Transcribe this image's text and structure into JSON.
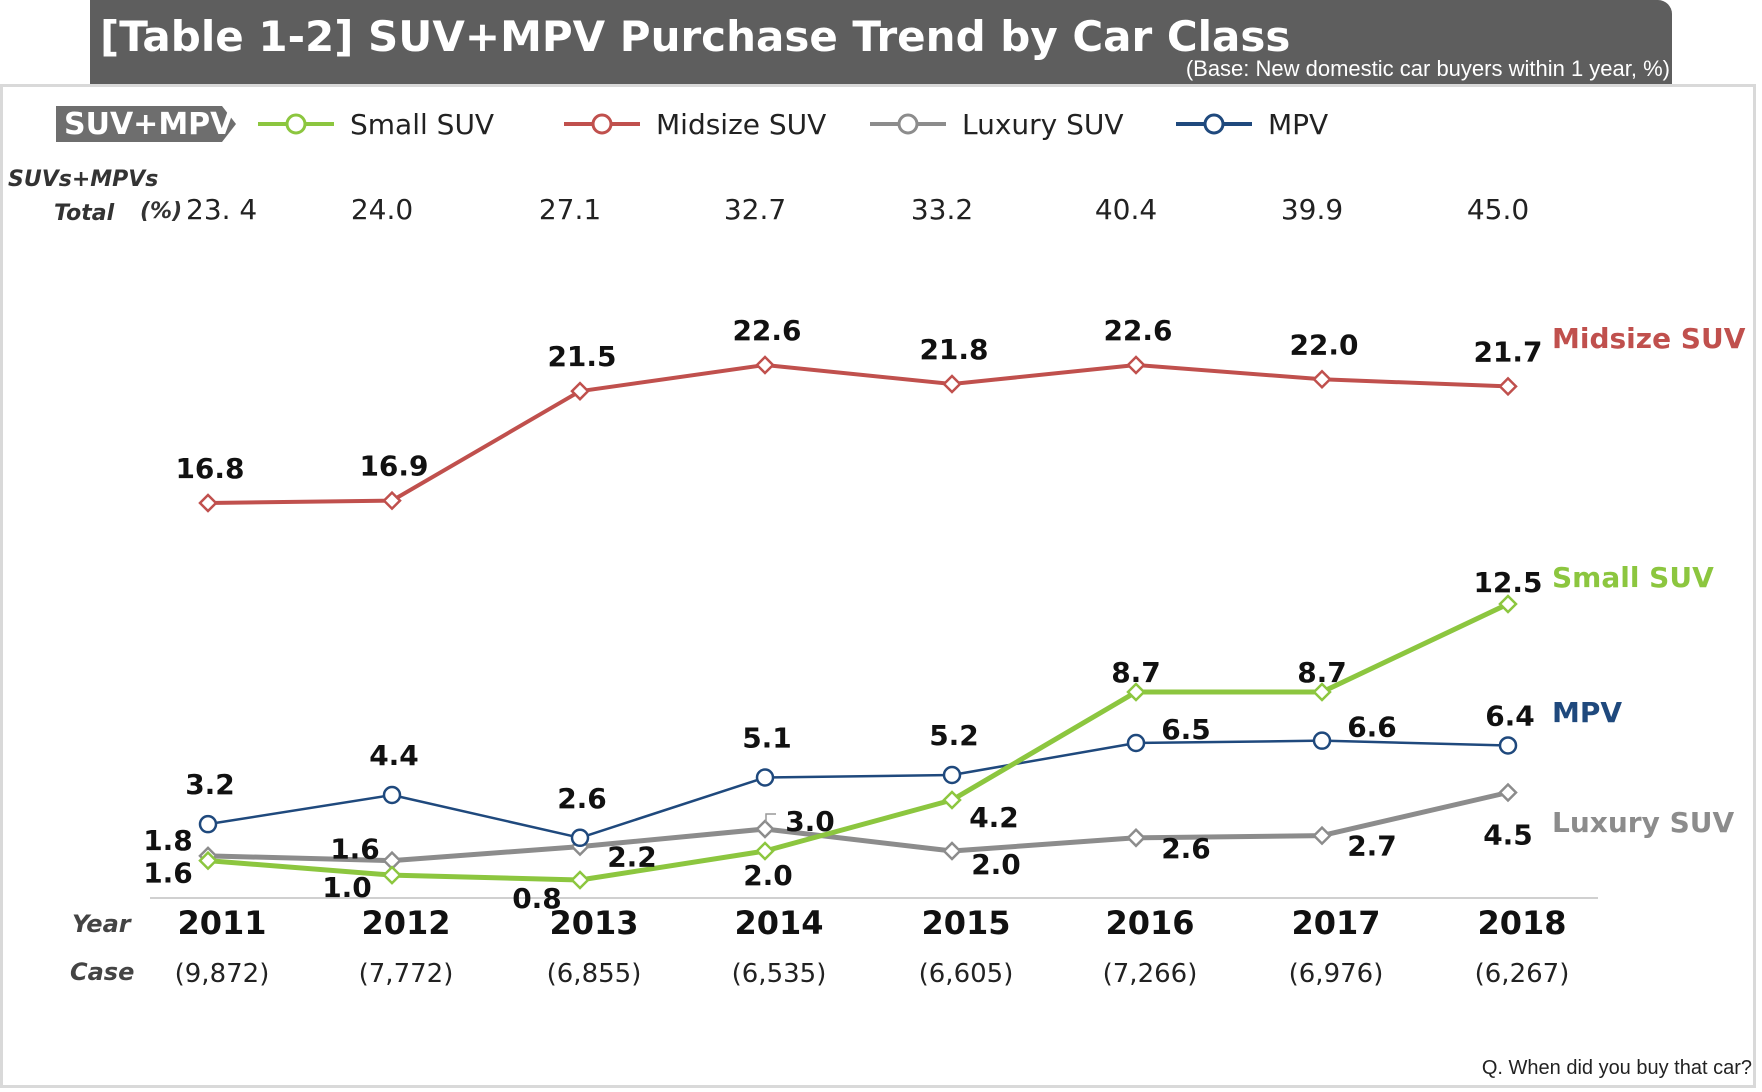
{
  "header": {
    "title": "[Table 1-2] SUV+MPV Purchase Trend by Car Class",
    "base": "(Base: New domestic car buyers within 1 year, %)"
  },
  "footer": {
    "question": "Q. When did you buy that car?"
  },
  "legend": {
    "tag": "SUV+MPV",
    "items": [
      "Small SUV",
      "Midsize SUV",
      "Luxury SUV",
      "MPV"
    ]
  },
  "totals_row": {
    "label_line1": "SUVs+MPVs",
    "label_line2": "Total",
    "unit": "(%)",
    "values": [
      "23. 4",
      "24.0",
      "27.1",
      "32.7",
      "33.2",
      "40.4",
      "39.9",
      "45.0"
    ]
  },
  "year_label": "Year",
  "case_label": "Case",
  "cases": [
    "(9,872)",
    "(7,772)",
    "(6,855)",
    "(6,535)",
    "(6,605)",
    "(7,266)",
    "(6,976)",
    "(6,267)"
  ],
  "colors": {
    "small": "#8cc63f",
    "midsize": "#c0504d",
    "luxury": "#8c8c8c",
    "mpv": "#1f497d"
  },
  "chart_data": {
    "type": "line",
    "x": [
      "2011",
      "2012",
      "2013",
      "2014",
      "2015",
      "2016",
      "2017",
      "2018"
    ],
    "series": [
      {
        "name": "Small SUV",
        "values": [
          1.6,
          1.0,
          0.8,
          2.0,
          4.2,
          8.7,
          8.7,
          12.5
        ]
      },
      {
        "name": "Midsize SUV",
        "values": [
          16.8,
          16.9,
          21.5,
          22.6,
          21.8,
          22.6,
          22.0,
          21.7
        ]
      },
      {
        "name": "Luxury SUV",
        "values": [
          1.8,
          1.6,
          2.2,
          3.0,
          2.0,
          2.6,
          2.7,
          4.5
        ]
      },
      {
        "name": "MPV",
        "values": [
          3.2,
          4.4,
          2.6,
          5.1,
          5.2,
          6.5,
          6.6,
          6.4
        ]
      }
    ],
    "legend": "top"
  }
}
